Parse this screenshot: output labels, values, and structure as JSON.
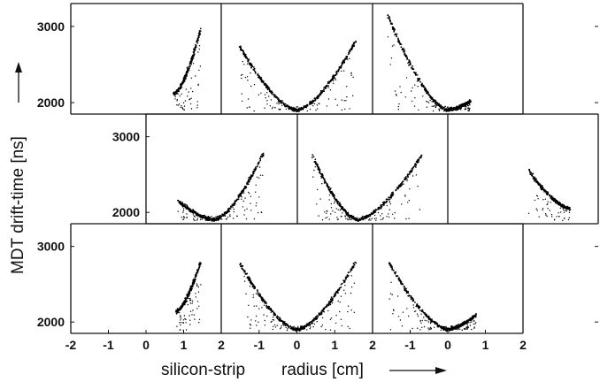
{
  "chart_data": {
    "type": "scatter",
    "description_free": true,
    "xlabel_left": "silicon-strip",
    "xlabel_right": "radius [cm]",
    "ylabel": "MDT drift-time [ns]",
    "x_ticks": [
      "-2",
      "-1",
      "0",
      "1",
      "2",
      "-1",
      "0",
      "1",
      "2",
      "-1",
      "0",
      "1",
      "2"
    ],
    "y_ticks": [
      "2000",
      "3000"
    ],
    "ylim": [
      1850,
      3300
    ],
    "xlim_per_panel": [
      -2,
      2
    ],
    "point_color": "#000000",
    "panels": [
      {
        "row": 1,
        "col": 1,
        "curves": [
          {
            "x": [
              0.75,
              1.45
            ],
            "y": [
              2120,
              2960
            ]
          }
        ]
      },
      {
        "row": 1,
        "col": 2,
        "curves": [
          {
            "x": [
              -1.5,
              0.0
            ],
            "y": [
              2730,
              1900
            ]
          },
          {
            "x": [
              0.0,
              1.55
            ],
            "y": [
              1900,
              2800
            ]
          }
        ]
      },
      {
        "row": 1,
        "col": 3,
        "curves": [
          {
            "x": [
              -1.6,
              0.0
            ],
            "y": [
              3150,
              1900
            ]
          },
          {
            "x": [
              0.0,
              0.6
            ],
            "y": [
              1900,
              2020
            ]
          }
        ]
      },
      {
        "row": 2,
        "col": 1,
        "curves": [
          {
            "x": [
              -1.15,
              -0.2
            ],
            "y": [
              2150,
              1900
            ]
          },
          {
            "x": [
              -0.2,
              1.1
            ],
            "y": [
              1900,
              2780
            ]
          }
        ]
      },
      {
        "row": 2,
        "col": 2,
        "curves": [
          {
            "x": [
              -1.6,
              -0.4
            ],
            "y": [
              2750,
              1900
            ]
          },
          {
            "x": [
              -0.4,
              1.3
            ],
            "y": [
              1900,
              2750
            ]
          }
        ]
      },
      {
        "row": 2,
        "col": 3,
        "curves": [
          {
            "x": [
              0.15,
              1.25
            ],
            "y": [
              2560,
              2050
            ]
          }
        ]
      },
      {
        "row": 3,
        "col": 1,
        "curves": [
          {
            "x": [
              0.8,
              1.45
            ],
            "y": [
              2140,
              2790
            ]
          }
        ]
      },
      {
        "row": 3,
        "col": 2,
        "curves": [
          {
            "x": [
              -1.5,
              0.0
            ],
            "y": [
              2770,
              1900
            ]
          },
          {
            "x": [
              0.0,
              1.55
            ],
            "y": [
              1900,
              2790
            ]
          }
        ]
      },
      {
        "row": 3,
        "col": 3,
        "curves": [
          {
            "x": [
              -1.55,
              0.0
            ],
            "y": [
              2780,
              1900
            ]
          },
          {
            "x": [
              0.0,
              0.75
            ],
            "y": [
              1900,
              2090
            ]
          }
        ]
      }
    ]
  }
}
